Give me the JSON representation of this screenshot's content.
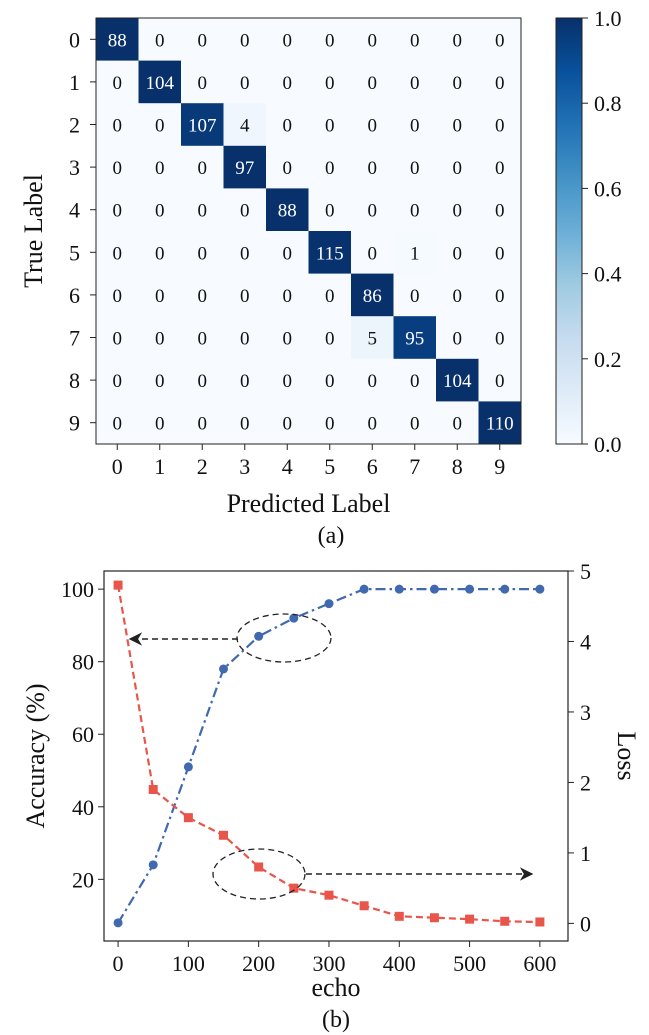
{
  "chart_data": [
    {
      "type": "heatmap",
      "id": "confusion",
      "caption": "(a)",
      "xlabel": "Predicted Label",
      "ylabel": "True Label",
      "x_ticks": [
        "0",
        "1",
        "2",
        "3",
        "4",
        "5",
        "6",
        "7",
        "8",
        "9"
      ],
      "y_ticks": [
        "0",
        "1",
        "2",
        "3",
        "4",
        "5",
        "6",
        "7",
        "8",
        "9"
      ],
      "matrix": [
        [
          88,
          0,
          0,
          0,
          0,
          0,
          0,
          0,
          0,
          0
        ],
        [
          0,
          104,
          0,
          0,
          0,
          0,
          0,
          0,
          0,
          0
        ],
        [
          0,
          0,
          107,
          4,
          0,
          0,
          0,
          0,
          0,
          0
        ],
        [
          0,
          0,
          0,
          97,
          0,
          0,
          0,
          0,
          0,
          0
        ],
        [
          0,
          0,
          0,
          0,
          88,
          0,
          0,
          0,
          0,
          0
        ],
        [
          0,
          0,
          0,
          0,
          0,
          115,
          0,
          1,
          0,
          0
        ],
        [
          0,
          0,
          0,
          0,
          0,
          0,
          86,
          0,
          0,
          0
        ],
        [
          0,
          0,
          0,
          0,
          0,
          0,
          5,
          95,
          0,
          0
        ],
        [
          0,
          0,
          0,
          0,
          0,
          0,
          0,
          0,
          104,
          0
        ],
        [
          0,
          0,
          0,
          0,
          0,
          0,
          0,
          0,
          0,
          110
        ]
      ],
      "colorbar": {
        "range": [
          0.0,
          1.0
        ],
        "ticks": [
          "0.0",
          "0.2",
          "0.4",
          "0.6",
          "0.8",
          "1.0"
        ],
        "colors": [
          "#f7fbff",
          "#deebf7",
          "#c6dbef",
          "#9ecae1",
          "#6baed6",
          "#4292c6",
          "#2171b5",
          "#08519c",
          "#08306b"
        ]
      }
    },
    {
      "type": "line",
      "id": "training",
      "caption": "(b)",
      "xlabel": "echo",
      "ylabel_left": "Accuracy (%)",
      "ylabel_right": "Loss",
      "x": [
        0,
        50,
        100,
        150,
        200,
        250,
        300,
        350,
        400,
        450,
        500,
        550,
        600
      ],
      "x_ticks": [
        0,
        100,
        200,
        300,
        400,
        500,
        600
      ],
      "xlim": [
        -20,
        640
      ],
      "ylim_left": [
        3,
        105
      ],
      "ylim_right": [
        -0.25,
        5.0
      ],
      "y_ticks_left": [
        20,
        40,
        60,
        80,
        100
      ],
      "y_ticks_right": [
        0,
        1,
        2,
        3,
        4,
        5
      ],
      "series": [
        {
          "name": "Accuracy",
          "axis": "left",
          "color": "#4169b0",
          "linestyle": "dashdot",
          "marker": "circle",
          "values": [
            8,
            24,
            51,
            78,
            87,
            92,
            96,
            100,
            100,
            100,
            100,
            100,
            100
          ]
        },
        {
          "name": "Loss",
          "axis": "right",
          "color": "#e8554a",
          "linestyle": "dashed",
          "marker": "square",
          "values": [
            4.8,
            1.9,
            1.5,
            1.25,
            0.8,
            0.5,
            0.4,
            0.25,
            0.1,
            0.08,
            0.06,
            0.03,
            0.02
          ]
        }
      ],
      "annotations": [
        {
          "kind": "ellipse+arrow",
          "target": "Accuracy",
          "points_to": "left axis"
        },
        {
          "kind": "ellipse+arrow",
          "target": "Loss",
          "points_to": "right axis"
        }
      ]
    }
  ]
}
